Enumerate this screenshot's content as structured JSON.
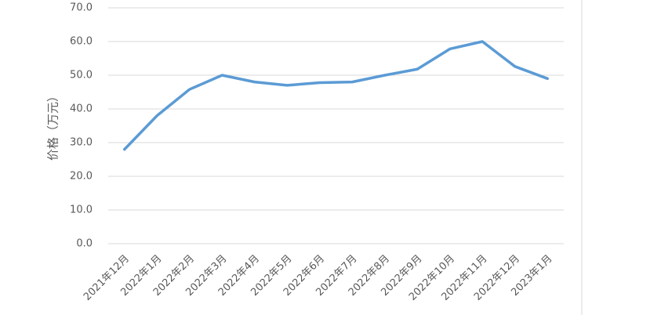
{
  "chart_data": {
    "type": "line",
    "y_label": "价格（万元）",
    "categories": [
      "2021年12月",
      "2022年1月",
      "2022年2月",
      "2022年3月",
      "2022年4月",
      "2022年5月",
      "2022年6月",
      "2022年7月",
      "2022年8月",
      "2022年9月",
      "2022年10月",
      "2022年11月",
      "2022年12月",
      "2023年1月"
    ],
    "values": [
      28.0,
      38.0,
      45.8,
      50.0,
      48.0,
      47.0,
      47.8,
      48.0,
      50.0,
      51.8,
      57.8,
      60.0,
      52.6,
      49.0
    ],
    "color": "#5b9bd5",
    "ylim": [
      0,
      70
    ],
    "yticks": [
      {
        "value": 0,
        "label": "0.0"
      },
      {
        "value": 10,
        "label": "10.0"
      },
      {
        "value": 20,
        "label": "20.0"
      },
      {
        "value": 30,
        "label": "30.0"
      },
      {
        "value": 40,
        "label": "40.0"
      },
      {
        "value": 50,
        "label": "50.0"
      },
      {
        "value": 60,
        "label": "60.0"
      },
      {
        "value": 70,
        "label": "70.0"
      }
    ],
    "grid": true
  }
}
